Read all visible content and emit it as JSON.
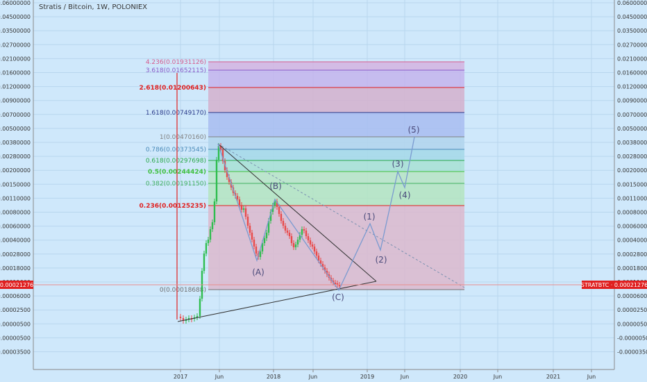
{
  "header": {
    "title": "Stratis / Bitcoin, 1W, POLONIEX"
  },
  "chart_data": {
    "type": "candlestick",
    "title": "Stratis / Bitcoin, 1W, POLONIEX",
    "symbol": "STRATBTC",
    "last_price": "0.00021276",
    "last_price_label_left": "0.00021276",
    "last_price_label_right": "STRATBTC · 0.00021276",
    "y_ticks": [
      "0.06000000",
      "0.04500000",
      "0.03500000",
      "0.02700000",
      "0.02100000",
      "0.01600000",
      "0.01200000",
      "0.00900000",
      "0.00700000",
      "0.00500000",
      "0.00380000",
      "0.00280000",
      "0.00200000",
      "0.00150000",
      "0.00110000",
      "0.00080000",
      "0.00060000",
      "0.00040000",
      "0.00028000",
      "0.00018000",
      "0.00011000",
      "0.00006000",
      "0.00002500",
      "0.00000500",
      "-0.00000500",
      "-0.00003500"
    ],
    "x_ticks": [
      "2017",
      "Jun",
      "2018",
      "Jun",
      "2019",
      "Jun",
      "2020",
      "Jun",
      "2021",
      "Jun"
    ],
    "fib_levels": [
      {
        "label": "4.236(0.01931126)",
        "color": "#d65c8e"
      },
      {
        "label": "3.618(0.01652115)",
        "color": "#8a5cc8"
      },
      {
        "label": "2.618(0.01200643)",
        "color": "#e02020"
      },
      {
        "label": "1.618(0.00749170)",
        "color": "#2a3a8a"
      },
      {
        "label": "1(0.00470160)",
        "color": "#808080"
      },
      {
        "label": "0.786(0.00373545)",
        "color": "#4a8ab8"
      },
      {
        "label": "0.618(0.00297698)",
        "color": "#2aa84a"
      },
      {
        "label": "0.5(0.00244424)",
        "color": "#40c040"
      },
      {
        "label": "0.382(0.00191150)",
        "color": "#40b060"
      },
      {
        "label": "0.236(0.00125235)",
        "color": "#e02020"
      },
      {
        "label": "0(0.00018688)",
        "color": "#707070"
      }
    ],
    "wave_labels": [
      "(A)",
      "(B)",
      "(C)",
      "(1)",
      "(2)",
      "(3)",
      "(4)",
      "(5)"
    ],
    "colors": {
      "background": "#cfe8fb",
      "up": "#2ebd4e",
      "down": "#e84a4a",
      "wave": "#7a9ad0",
      "price_line": "#e02020"
    }
  }
}
